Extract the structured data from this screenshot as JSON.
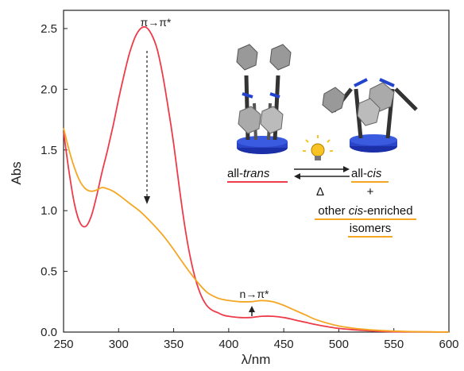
{
  "chart_data": {
    "type": "line",
    "title": "",
    "xlabel": "λ/nm",
    "ylabel": "Abs",
    "xlim": [
      250,
      600
    ],
    "ylim": [
      0,
      2.65
    ],
    "xticks": [
      250,
      300,
      350,
      400,
      450,
      500,
      550,
      600
    ],
    "yticks": [
      "0.0",
      "0.5",
      "1.0",
      "1.5",
      "2.0",
      "2.5"
    ],
    "grid": false,
    "series": [
      {
        "color": "#ee3b4a",
        "x": [
          250,
          255,
          260,
          265,
          270,
          275,
          280,
          285,
          290,
          295,
          300,
          305,
          310,
          315,
          320,
          325,
          330,
          335,
          340,
          345,
          350,
          355,
          360,
          365,
          370,
          375,
          380,
          385,
          390,
          395,
          400,
          410,
          420,
          430,
          440,
          450,
          460,
          470,
          480,
          500,
          520,
          540,
          560,
          580,
          600
        ],
        "y": [
          1.65,
          1.32,
          1.05,
          0.9,
          0.87,
          0.95,
          1.12,
          1.32,
          1.5,
          1.7,
          1.92,
          2.12,
          2.3,
          2.43,
          2.5,
          2.51,
          2.45,
          2.33,
          2.12,
          1.85,
          1.55,
          1.2,
          0.88,
          0.62,
          0.43,
          0.3,
          0.22,
          0.18,
          0.16,
          0.14,
          0.13,
          0.12,
          0.12,
          0.13,
          0.13,
          0.12,
          0.1,
          0.08,
          0.06,
          0.03,
          0.015,
          0.005,
          0.002,
          0.001,
          0.0
        ]
      },
      {
        "color": "#f5a623",
        "x": [
          250,
          255,
          260,
          265,
          270,
          275,
          280,
          285,
          290,
          295,
          300,
          310,
          320,
          330,
          340,
          350,
          360,
          370,
          380,
          390,
          400,
          410,
          420,
          430,
          440,
          450,
          460,
          470,
          480,
          500,
          520,
          540,
          560,
          580,
          600
        ],
        "y": [
          1.68,
          1.5,
          1.35,
          1.24,
          1.18,
          1.16,
          1.17,
          1.19,
          1.18,
          1.16,
          1.13,
          1.06,
          0.99,
          0.9,
          0.8,
          0.68,
          0.55,
          0.43,
          0.33,
          0.28,
          0.26,
          0.25,
          0.25,
          0.26,
          0.25,
          0.22,
          0.18,
          0.14,
          0.1,
          0.05,
          0.025,
          0.012,
          0.005,
          0.002,
          0.0
        ]
      }
    ],
    "annotations": {
      "pi_pi": "π→π*",
      "n_pi": "n→π*"
    }
  },
  "scheme": {
    "trans_label_prefix": "all-",
    "trans_label_italic": "trans",
    "cis_label_prefix": "all-",
    "cis_label_italic": "cis",
    "delta": "Δ",
    "plus": "+",
    "other_prefix": "other ",
    "other_italic": "cis",
    "other_suffix": "-enriched",
    "isomers": "isomers",
    "underline_trans_color": "#ee3b4a",
    "underline_cis_color": "#f5a623",
    "bulb_color": "#f7c325"
  }
}
